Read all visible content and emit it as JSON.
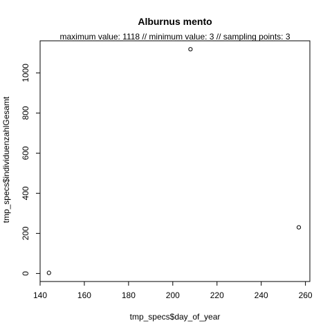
{
  "chart_data": {
    "type": "scatter",
    "title": "Alburnus mento",
    "subtitle": "maximum value: 1118  //  minimum value: 3  // sampling points: 3",
    "xlabel": "tmp_specs$day_of_year",
    "ylabel": "tmp_specs$individuenzahlGesamt",
    "xlim": [
      140,
      262
    ],
    "ylim": [
      -40,
      1160
    ],
    "xticks": [
      140,
      160,
      180,
      200,
      220,
      240,
      260
    ],
    "yticks": [
      0,
      200,
      400,
      600,
      800,
      1000
    ],
    "points": [
      {
        "x": 144,
        "y": 3
      },
      {
        "x": 208,
        "y": 1118
      },
      {
        "x": 257,
        "y": 230
      }
    ],
    "marker": "open-circle",
    "grid": false,
    "legend": "none"
  }
}
